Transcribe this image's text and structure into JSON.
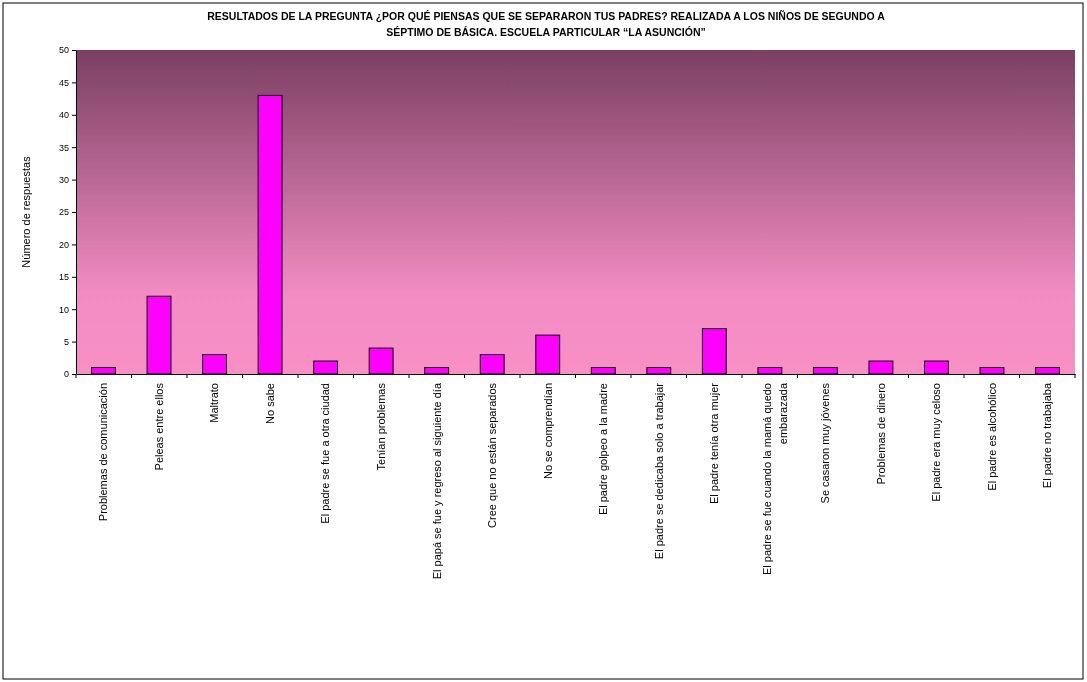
{
  "chart_data": {
    "type": "bar",
    "title": "RESULTADOS DE LA PREGUNTA ¿POR QUÉ PIENSAS QUE SE SEPARARON TUS PADRES? REALIZADA A LOS NIÑOS DE SEGUNDO A SÉPTIMO DE BÁSICA. ESCUELA PARTICULAR “LA ASUNCIÓN”",
    "ylabel": "Número de respuestas",
    "categories": [
      "Problemas de comunicación",
      "Peleas entre ellos",
      "Maltrato",
      "No sabe",
      "El padre se fue a otra ciudad",
      "Tenían problemas",
      "El papá se fue y regreso al siguiente día",
      "Cree que no están separados",
      "No se comprendían",
      "El padre golpeo a la madre",
      "El padre se dedicaba solo a trabajar",
      "El padre tenía otra mujer",
      "El padre se fue cuando la mamá quedo embarazada",
      "Se casaron muy jóvenes",
      "Problemas de dinero",
      "El padre era muy celoso",
      "El padre es alcohólico",
      "El padre no trabajaba"
    ],
    "values": [
      1,
      12,
      3,
      43,
      2,
      4,
      1,
      3,
      6,
      1,
      1,
      7,
      1,
      1,
      2,
      2,
      1,
      1
    ],
    "color": "#ff00ff",
    "ylim": [
      0,
      50
    ],
    "yticks": [
      0,
      5,
      10,
      15,
      20,
      25,
      30,
      35,
      40,
      45,
      50
    ],
    "grid": false
  }
}
